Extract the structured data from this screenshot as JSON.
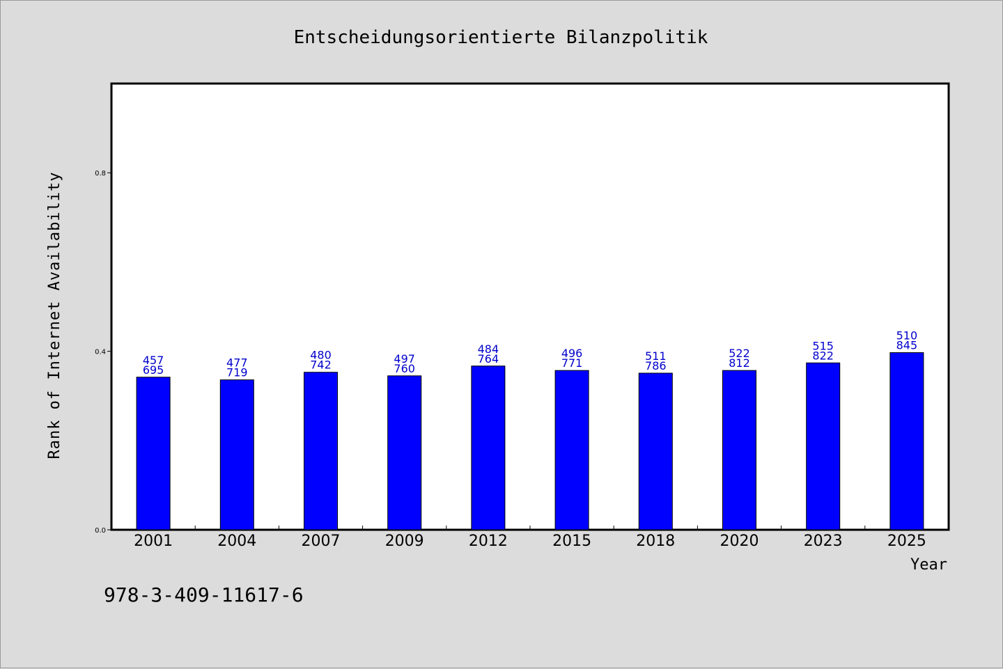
{
  "chart_data": {
    "type": "bar",
    "title": "Entscheidungsorientierte Bilanzpolitik",
    "xlabel": "Year",
    "ylabel": "Rank of Internet Availability",
    "categories": [
      "2001",
      "2004",
      "2007",
      "2009",
      "2012",
      "2015",
      "2018",
      "2020",
      "2023",
      "2025"
    ],
    "values": [
      0.342,
      0.336,
      0.353,
      0.345,
      0.367,
      0.357,
      0.351,
      0.357,
      0.374,
      0.397
    ],
    "data_labels_top": [
      "457",
      "477",
      "480",
      "497",
      "484",
      "496",
      "511",
      "522",
      "515",
      "510"
    ],
    "data_labels_bottom": [
      "695",
      "719",
      "742",
      "760",
      "764",
      "771",
      "786",
      "812",
      "822",
      "845"
    ],
    "ylim": [
      0,
      1.0
    ],
    "yticks": [
      0.0,
      0.4,
      0.8
    ],
    "ytick_labels": [
      "0.0",
      "0.4",
      "0.8"
    ],
    "grid": false,
    "bar_color": "#0000ff",
    "data_label_color": "#0000cc"
  },
  "footer": {
    "isbn": "978-3-409-11617-6"
  },
  "colors": {
    "background": "#dcdcdc",
    "plot_background": "#ffffff"
  }
}
